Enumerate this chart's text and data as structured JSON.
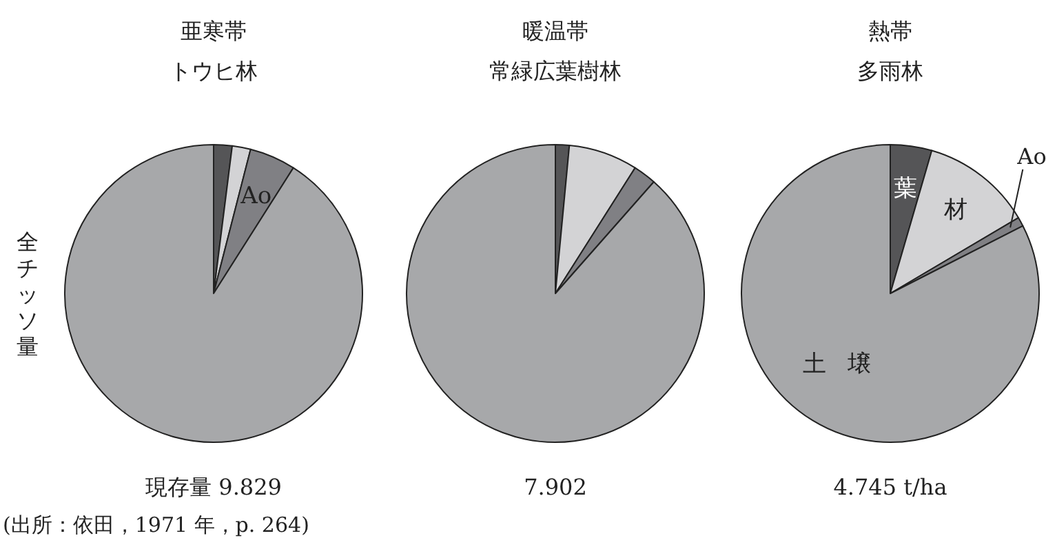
{
  "chart_data": [
    {
      "type": "pie",
      "title": "亜寒帯",
      "subtitle": "トウヒ林",
      "ylabel": "全チッソ量",
      "categories": [
        null,
        null,
        "Ao",
        null
      ],
      "values": [
        2,
        2,
        5,
        91
      ],
      "colors": [
        "#555557",
        "#d3d3d5",
        "#808084",
        "#a7a8aa"
      ],
      "annotations": [
        "現存量 9.829",
        "(出所：依田，1971 年，p. 264)"
      ]
    },
    {
      "type": "pie",
      "title": "暖温帯",
      "subtitle": "常緑広葉樹林",
      "categories": [
        null,
        null,
        null,
        null
      ],
      "values": [
        1.5,
        7.5,
        2.5,
        88.5
      ],
      "colors": [
        "#555557",
        "#d3d3d5",
        "#808084",
        "#a7a8aa"
      ],
      "annotations": [
        "7.902"
      ]
    },
    {
      "type": "pie",
      "title": "熱帯",
      "subtitle": "多雨林",
      "categories": [
        "葉",
        "材",
        "Ao",
        "土壌"
      ],
      "values": [
        4.5,
        12,
        1,
        82.5
      ],
      "colors": [
        "#555557",
        "#d3d3d5",
        "#808084",
        "#a7a8aa"
      ],
      "annotations": [
        "4.745 t/ha"
      ]
    }
  ]
}
